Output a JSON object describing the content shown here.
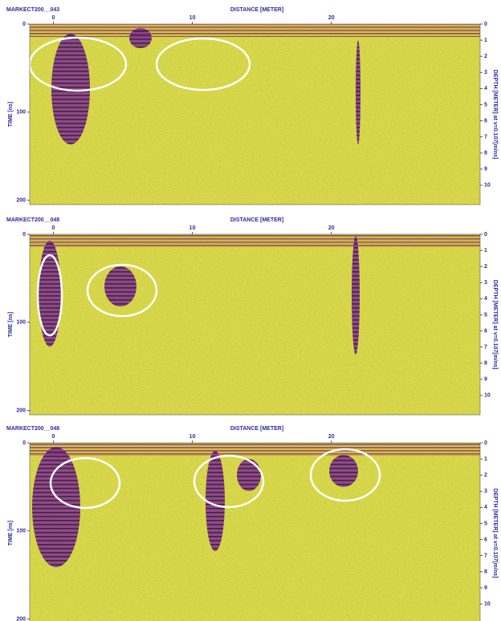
{
  "panels": [
    {
      "title": "MARKECT200__043",
      "x_label": "DISTANCE [METER]",
      "y_label": "TIME [ns]",
      "y2_label": "DEPTH [METER] at v=0.107[m/ns]",
      "xlim": [
        -1.7,
        30.7
      ],
      "xticks": [
        0,
        10,
        20
      ],
      "ylim": [
        0,
        205
      ],
      "yticks": [
        0,
        100,
        200
      ],
      "y2lim": [
        0,
        11.2
      ],
      "y2ticks": [
        0,
        1,
        2,
        3,
        4,
        5,
        6,
        7,
        8,
        9,
        10
      ]
    },
    {
      "title": "MARKECT200__048",
      "x_label": "DISTANCE [METER]",
      "y_label": "TIME [ns]",
      "y2_label": "DEPTH [METER] at v=0.107[m/ns]",
      "xlim": [
        -1.7,
        30.7
      ],
      "xticks": [
        0,
        10,
        20
      ],
      "ylim": [
        0,
        205
      ],
      "yticks": [
        0,
        100,
        200
      ],
      "y2lim": [
        0,
        11.2
      ],
      "y2ticks": [
        0,
        1,
        2,
        3,
        4,
        5,
        6,
        7,
        8,
        9,
        10
      ]
    },
    {
      "title": "MARKECT200__048",
      "x_label": "DISTANCE [METER]",
      "y_label": "TIME [ns]",
      "y2_label": "DEPTH [METER] at v=0.107[m/ns]",
      "xlim": [
        -1.7,
        30.7
      ],
      "xticks": [
        0,
        10,
        20
      ],
      "ylim": [
        0,
        205
      ],
      "yticks": [
        0,
        100,
        200
      ],
      "y2lim": [
        0,
        11.2
      ],
      "y2ticks": [
        0,
        1,
        2,
        3,
        4,
        5,
        6,
        7,
        8,
        9,
        10
      ]
    }
  ]
}
